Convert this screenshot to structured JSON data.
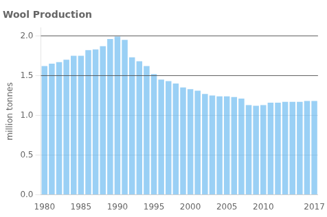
{
  "chart_data": {
    "type": "bar",
    "title": "Wool Production",
    "ylabel": "million tonnes",
    "categories": [
      "1980",
      null,
      null,
      null,
      null,
      "1985",
      null,
      null,
      null,
      null,
      "1990",
      null,
      null,
      null,
      null,
      "1995",
      null,
      null,
      null,
      null,
      "2000",
      null,
      null,
      null,
      null,
      "2005",
      null,
      null,
      null,
      null,
      "2010",
      null,
      null,
      null,
      null,
      null,
      null,
      "2017"
    ],
    "values": [
      1.62,
      1.65,
      1.67,
      1.7,
      1.75,
      1.75,
      1.82,
      1.83,
      1.87,
      1.96,
      1.99,
      1.95,
      1.73,
      1.68,
      1.62,
      1.52,
      1.45,
      1.43,
      1.4,
      1.35,
      1.33,
      1.31,
      1.27,
      1.25,
      1.24,
      1.24,
      1.23,
      1.21,
      1.13,
      1.12,
      1.13,
      1.16,
      1.16,
      1.17,
      1.17,
      1.17,
      1.18,
      1.18
    ],
    "ylim": [
      0.0,
      2.1
    ],
    "yticks": [
      {
        "value": 0.0,
        "label": "0.0"
      },
      0.5,
      {
        "value": 1.0,
        "label": "1.0"
      },
      1.5,
      {
        "value": 2.0,
        "label": "2.0"
      }
    ],
    "hlines": [
      2.0,
      1.5
    ],
    "grid": true
  }
}
